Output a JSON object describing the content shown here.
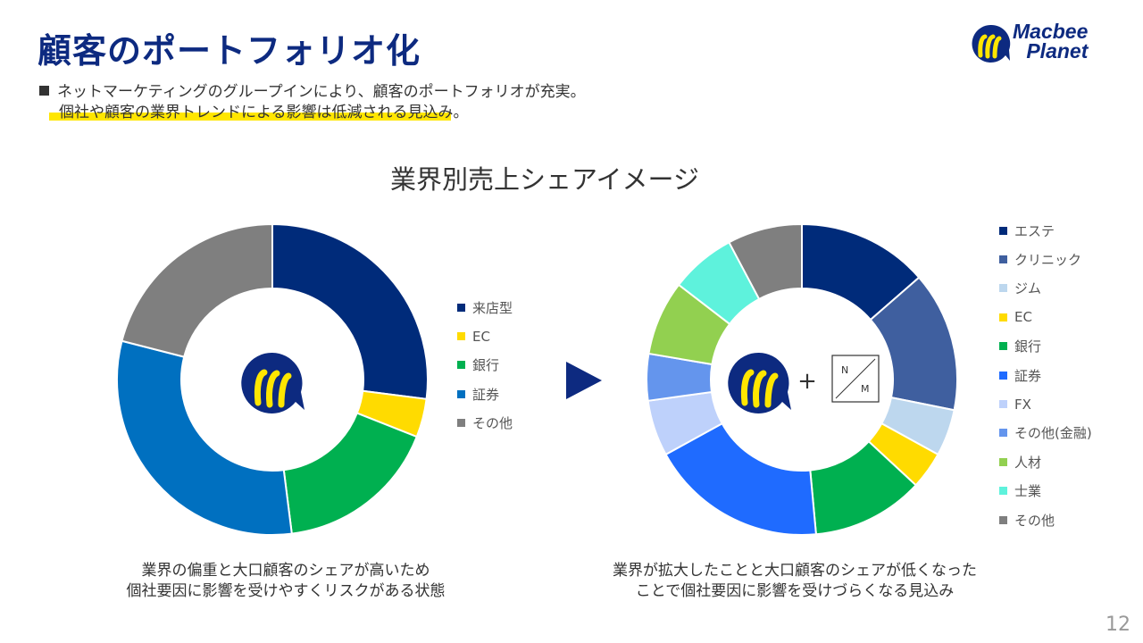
{
  "page": {
    "title": "顧客のポートフォリオ化",
    "bullet_line1": "ネットマーケティングのグループインにより、顧客のポートフォリオが充実。",
    "bullet_line2": "個社や顧客の業界トレンドによる影響は低減される見込み。",
    "chart_heading": "業界別売上シェアイメージ",
    "caption_left_1": "業界の偏重と大口顧客のシェアが高いため",
    "caption_left_2": "個社要因に影響を受けやすくリスクがある状態",
    "caption_right_1": "業界が拡大したことと大口顧客のシェアが低くなった",
    "caption_right_2": "ことで個社要因に影響を受けづらくなる見込み",
    "page_number": "12",
    "plus": "+",
    "nm_n": "N",
    "nm_m": "M"
  },
  "logo": {
    "line1": "Macbee",
    "line2": "Planet",
    "icon": "macbee-m-icon"
  },
  "colors": {
    "title": "#0d2a80",
    "highlight": "#ffe600",
    "arrow": "#0d2a80"
  },
  "chart_data": [
    {
      "type": "pie",
      "categories": [
        "来店型",
        "EC",
        "銀行",
        "証券",
        "その他"
      ],
      "values": [
        27,
        4,
        17,
        31,
        21
      ],
      "colors": [
        "#002b7a",
        "#ffdb00",
        "#00b050",
        "#0070c0",
        "#7f7f7f"
      ],
      "legend": "right"
    },
    {
      "type": "pie",
      "categories": [
        "エステ",
        "クリニック",
        "ジム",
        "EC",
        "銀行",
        "証券",
        "FX",
        "その他(金融)",
        "人材",
        "士業",
        "その他"
      ],
      "values": [
        14,
        15,
        5,
        4,
        12,
        19,
        6,
        5,
        8,
        7,
        8
      ],
      "colors": [
        "#002b7a",
        "#3f5f9f",
        "#bdd7ee",
        "#ffdb00",
        "#00b050",
        "#1f6bff",
        "#bed1fb",
        "#6495ed",
        "#92d050",
        "#5ef2dc",
        "#7f7f7f"
      ],
      "legend": "right"
    }
  ]
}
